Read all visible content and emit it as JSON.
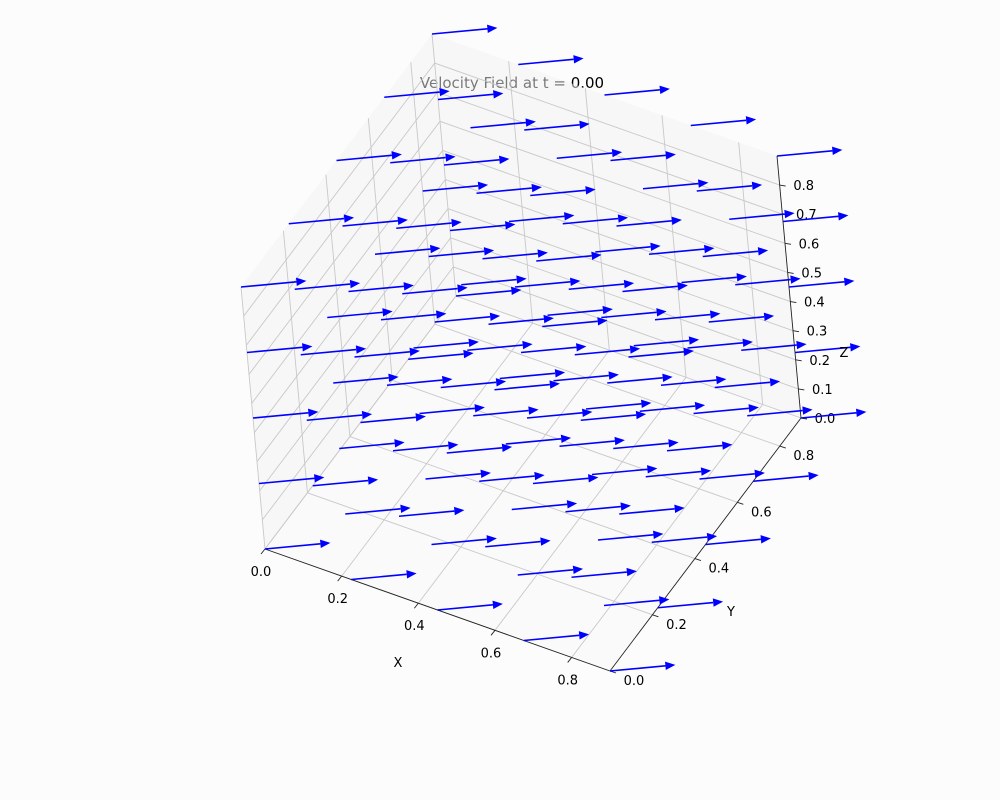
{
  "chart_data": {
    "type": "quiver3d",
    "title": "Velocity Field at t = 0.00",
    "xlabel": "X",
    "ylabel": "Y",
    "zlabel": "Z",
    "xlim": [
      0.0,
      0.9
    ],
    "ylim": [
      0.0,
      0.9
    ],
    "zlim": [
      0.0,
      0.9
    ],
    "x_ticks": [
      "0.0",
      "0.2",
      "0.4",
      "0.6",
      "0.8"
    ],
    "y_ticks": [
      "0.0",
      "0.2",
      "0.4",
      "0.6",
      "0.8"
    ],
    "z_ticks": [
      "0.0",
      "0.1",
      "0.2",
      "0.3",
      "0.4",
      "0.5",
      "0.6",
      "0.7",
      "0.8"
    ],
    "grid": true,
    "vector_color": "#0000ff",
    "grid_points": [
      0.0,
      0.225,
      0.45,
      0.675,
      0.9
    ],
    "time": 0.0,
    "velocity": {
      "u": 0.12,
      "v": 0.09,
      "w": -0.01
    }
  }
}
